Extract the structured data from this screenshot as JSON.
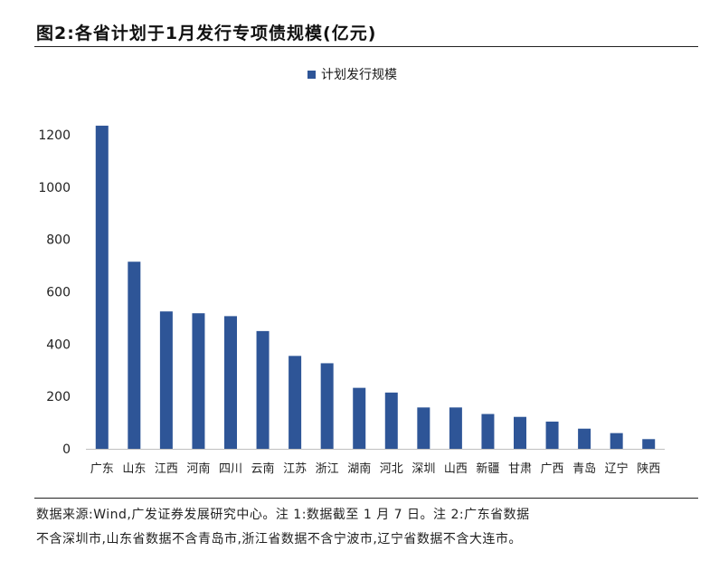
{
  "header": {
    "title": "图2:各省计划于1月发行专项债规模(亿元)"
  },
  "legend": {
    "label": "计划发行规模"
  },
  "footer": {
    "line1": "数据来源:Wind,广发证券发展研究中心。注 1:数据截至 1 月 7 日。注 2:广东省数据",
    "line2": "不含深圳市,山东省数据不含青岛市,浙江省数据不含宁波市,辽宁省数据不含大连市。"
  },
  "colors": {
    "bar": "#2E5597",
    "axis": "#BFBFBF"
  },
  "chart_data": {
    "type": "bar",
    "title": "各省计划于1月发行专项债规模(亿元)",
    "categories": [
      "广东",
      "山东",
      "江西",
      "河南",
      "四川",
      "云南",
      "江苏",
      "浙江",
      "湖南",
      "河北",
      "深圳",
      "山西",
      "新疆",
      "甘肃",
      "广西",
      "青岛",
      "辽宁",
      "陕西"
    ],
    "series": [
      {
        "name": "计划发行规模",
        "values": [
          1235,
          715,
          525,
          518,
          507,
          450,
          355,
          327,
          233,
          215,
          158,
          158,
          133,
          122,
          104,
          77,
          60,
          37
        ]
      }
    ],
    "ylim": [
      0,
      1200
    ],
    "yticks": [
      0,
      200,
      400,
      600,
      800,
      1000,
      1200
    ],
    "grid": false,
    "legend_position": "top"
  }
}
